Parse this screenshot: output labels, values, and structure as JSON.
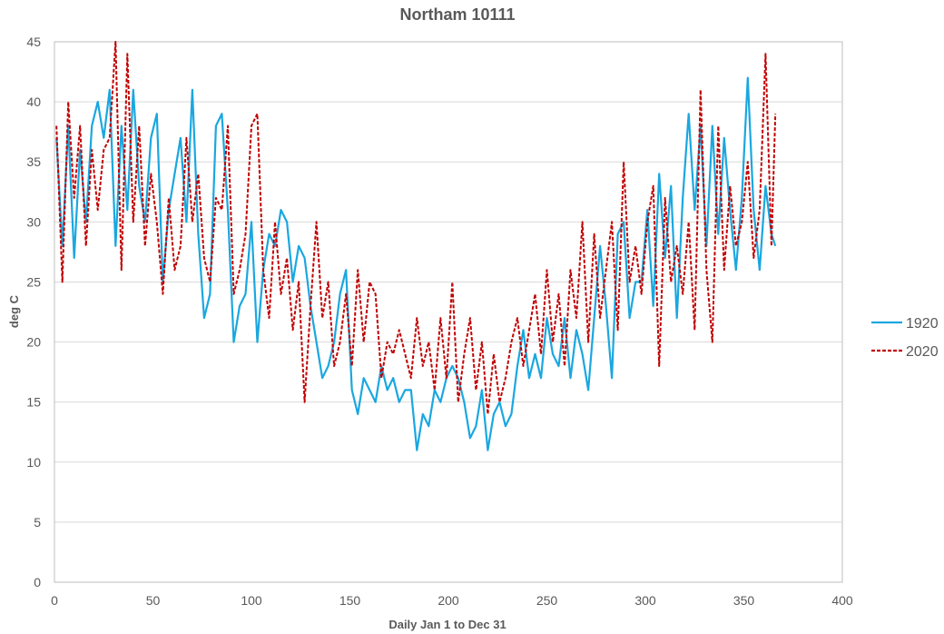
{
  "chart_data": {
    "type": "line",
    "title": "Northam 10111",
    "xlabel": "Daily Jan 1 to Dec 31",
    "ylabel": "deg C",
    "xlim": [
      0,
      400
    ],
    "ylim": [
      0,
      45
    ],
    "xticks": [
      "0",
      "50",
      "100",
      "150",
      "200",
      "250",
      "300",
      "350",
      "400"
    ],
    "yticks": [
      "0",
      "5",
      "10",
      "15",
      "20",
      "25",
      "30",
      "35",
      "40",
      "45"
    ],
    "grid": "horizontal",
    "legend_position": "right",
    "series": [
      {
        "name": "1920",
        "color": "#1aa7e0",
        "dash": "solid",
        "x": [
          1,
          4,
          7,
          10,
          13,
          16,
          19,
          22,
          25,
          28,
          31,
          34,
          37,
          40,
          43,
          46,
          49,
          52,
          55,
          58,
          61,
          64,
          67,
          70,
          73,
          76,
          79,
          82,
          85,
          88,
          91,
          94,
          97,
          100,
          103,
          106,
          109,
          112,
          115,
          118,
          121,
          124,
          127,
          130,
          133,
          136,
          139,
          142,
          145,
          148,
          151,
          154,
          157,
          160,
          163,
          166,
          169,
          172,
          175,
          178,
          181,
          184,
          187,
          190,
          193,
          196,
          199,
          202,
          205,
          208,
          211,
          214,
          217,
          220,
          223,
          226,
          229,
          232,
          235,
          238,
          241,
          244,
          247,
          250,
          253,
          256,
          259,
          262,
          265,
          268,
          271,
          274,
          277,
          280,
          283,
          286,
          289,
          292,
          295,
          298,
          301,
          304,
          307,
          310,
          313,
          316,
          319,
          322,
          325,
          328,
          331,
          334,
          337,
          340,
          343,
          346,
          349,
          352,
          355,
          358,
          361,
          364,
          366
        ],
        "y": [
          37,
          28,
          38,
          27,
          36,
          30,
          38,
          40,
          37,
          41,
          28,
          38,
          31,
          41,
          33,
          30,
          37,
          39,
          25,
          31,
          34,
          37,
          30,
          41,
          29,
          22,
          24,
          38,
          39,
          31,
          20,
          23,
          24,
          30,
          20,
          26,
          29,
          28,
          31,
          30,
          25,
          28,
          27,
          23,
          20,
          17,
          18,
          20,
          24,
          26,
          16,
          14,
          17,
          16,
          15,
          18,
          16,
          17,
          15,
          16,
          16,
          11,
          14,
          13,
          16,
          15,
          17,
          18,
          17,
          15,
          12,
          13,
          16,
          11,
          14,
          15,
          13,
          14,
          18,
          21,
          17,
          19,
          17,
          22,
          19,
          18,
          22,
          17,
          21,
          19,
          16,
          22,
          28,
          23,
          17,
          29,
          30,
          22,
          25,
          25,
          31,
          23,
          34,
          27,
          33,
          22,
          32,
          39,
          31,
          38,
          28,
          38,
          29,
          37,
          31,
          26,
          32,
          42,
          31,
          26,
          33,
          29,
          28
        ]
      },
      {
        "name": "2020",
        "color": "#c00000",
        "dash": "dashed",
        "x": [
          1,
          4,
          7,
          10,
          13,
          16,
          19,
          22,
          25,
          28,
          31,
          34,
          37,
          40,
          43,
          46,
          49,
          52,
          55,
          58,
          61,
          64,
          67,
          70,
          73,
          76,
          79,
          82,
          85,
          88,
          91,
          94,
          97,
          100,
          103,
          106,
          109,
          112,
          115,
          118,
          121,
          124,
          127,
          130,
          133,
          136,
          139,
          142,
          145,
          148,
          151,
          154,
          157,
          160,
          163,
          166,
          169,
          172,
          175,
          178,
          181,
          184,
          187,
          190,
          193,
          196,
          199,
          202,
          205,
          208,
          211,
          214,
          217,
          220,
          223,
          226,
          229,
          232,
          235,
          238,
          241,
          244,
          247,
          250,
          253,
          256,
          259,
          262,
          265,
          268,
          271,
          274,
          277,
          280,
          283,
          286,
          289,
          292,
          295,
          298,
          301,
          304,
          307,
          310,
          313,
          316,
          319,
          322,
          325,
          328,
          331,
          334,
          337,
          340,
          343,
          346,
          349,
          352,
          355,
          358,
          361,
          364,
          366
        ],
        "y": [
          38,
          25,
          40,
          32,
          38,
          28,
          36,
          31,
          36,
          37,
          45,
          26,
          44,
          30,
          38,
          28,
          34,
          30,
          24,
          32,
          26,
          28,
          37,
          30,
          34,
          27,
          25,
          32,
          31,
          38,
          24,
          26,
          29,
          38,
          39,
          26,
          22,
          30,
          24,
          27,
          21,
          25,
          15,
          23,
          30,
          22,
          25,
          18,
          20,
          24,
          18,
          26,
          20,
          25,
          24,
          17,
          20,
          19,
          21,
          19,
          17,
          22,
          18,
          20,
          16,
          22,
          17,
          25,
          15,
          19,
          22,
          16,
          20,
          14,
          19,
          15,
          17,
          20,
          22,
          18,
          21,
          24,
          19,
          26,
          20,
          24,
          18,
          26,
          22,
          30,
          20,
          29,
          22,
          26,
          30,
          21,
          35,
          25,
          28,
          24,
          30,
          33,
          18,
          32,
          25,
          28,
          24,
          30,
          21,
          41,
          26,
          20,
          38,
          26,
          33,
          28,
          30,
          35,
          27,
          31,
          44,
          28,
          39
        ]
      }
    ]
  }
}
